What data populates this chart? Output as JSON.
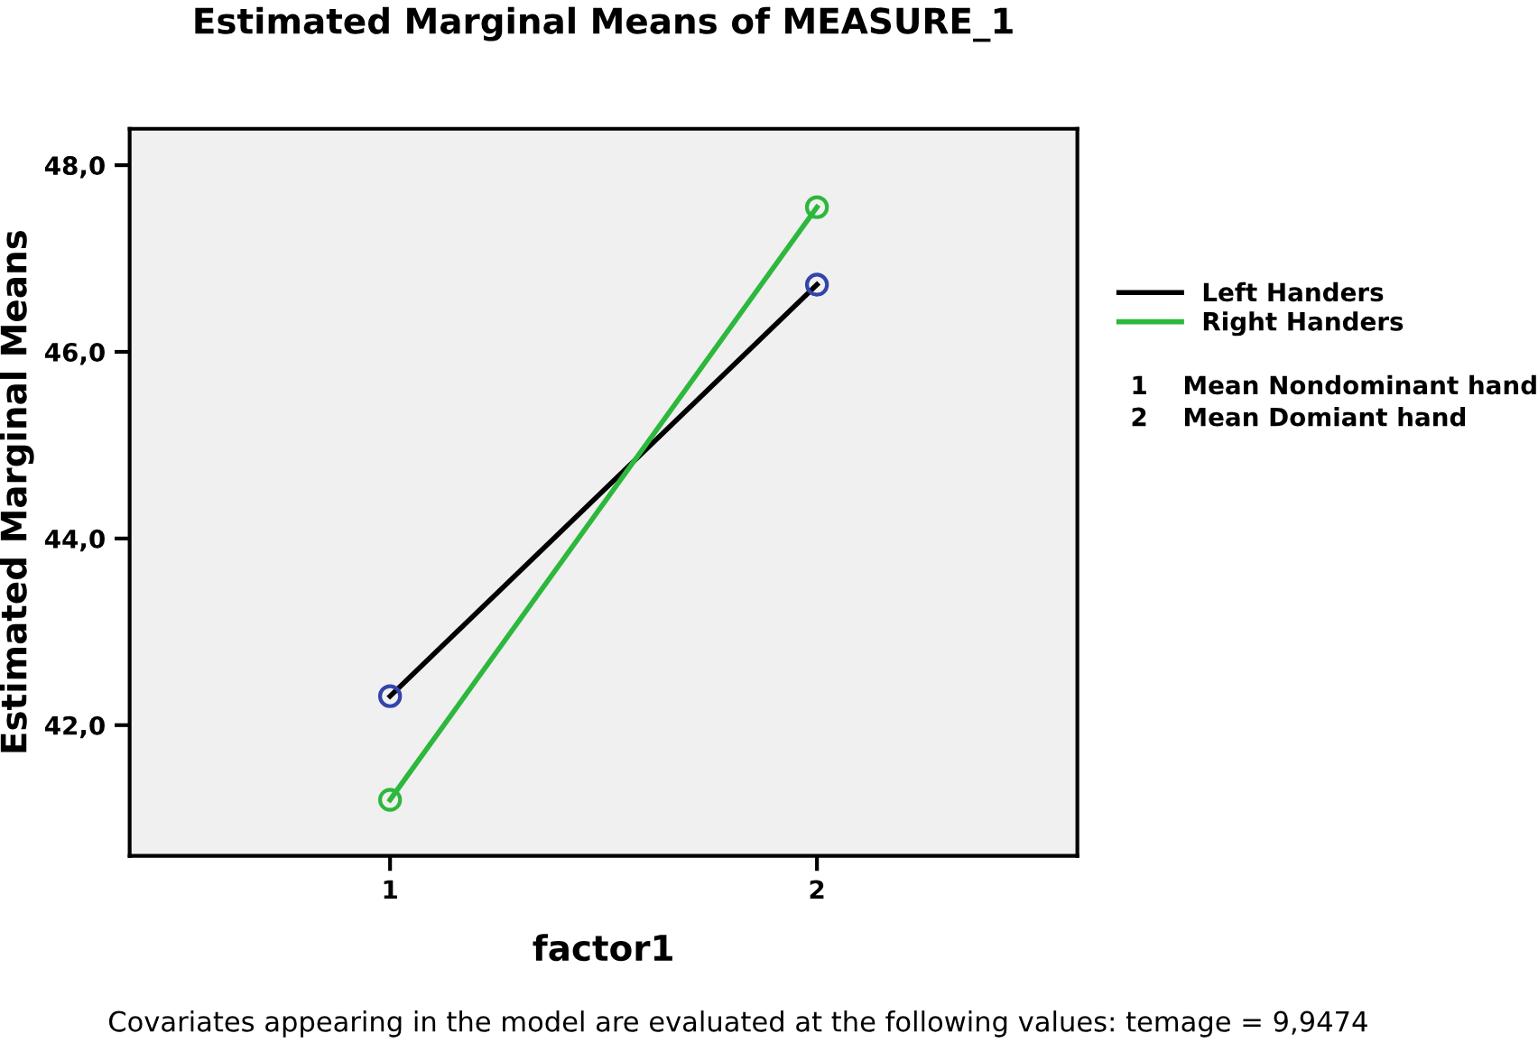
{
  "chart_data": {
    "type": "line",
    "title": "Estimated Marginal Means of MEASURE_1",
    "xlabel": "factor1",
    "ylabel": "Estimated Marginal Means",
    "x": [
      1,
      2
    ],
    "xlim": [
      0.39,
      2.61
    ],
    "xticks": [
      1,
      2
    ],
    "ylim": [
      40.6,
      48.39
    ],
    "yticks": [
      {
        "value": 42,
        "label": "42,0"
      },
      {
        "value": 44,
        "label": "44,0"
      },
      {
        "value": 46,
        "label": "46,0"
      },
      {
        "value": 48,
        "label": "48,0"
      }
    ],
    "series": [
      {
        "name": "Left Handers",
        "color": "#000000",
        "colors": [
          "#3344aa",
          "#3344aa"
        ],
        "values": [
          42.31,
          46.72
        ]
      },
      {
        "name": "Right Handers",
        "color": "#2db83d",
        "colors": [
          "#2db83d",
          "#2db83d"
        ],
        "values": [
          41.2,
          47.55
        ]
      }
    ],
    "marker": "circle",
    "line_style": "solid",
    "grid": false,
    "legend": "right",
    "annotations": [
      "1    Mean Nondominant hand",
      "2    Mean Domiant hand",
      "Covariates appearing in the model are evaluated at the following values: temage = 9,9474"
    ]
  }
}
